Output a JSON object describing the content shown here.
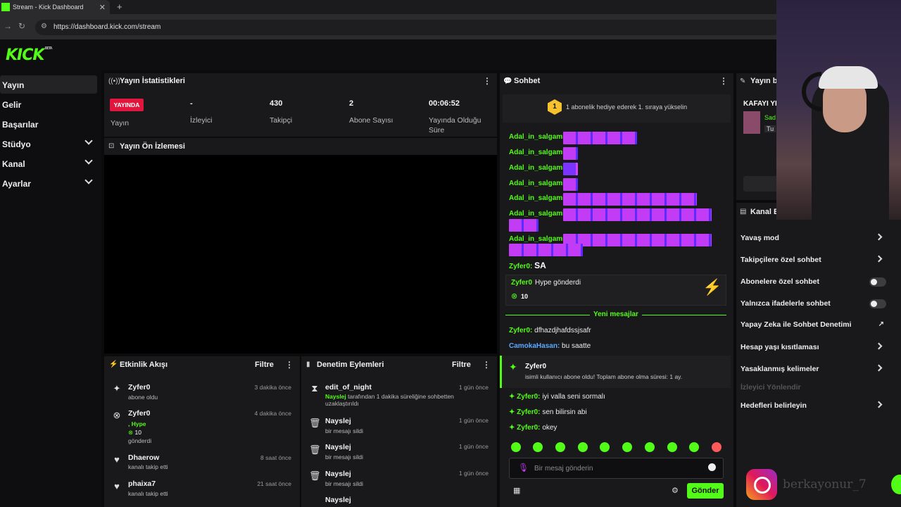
{
  "browser": {
    "tab_title": "Stream - Kick Dashboard",
    "url": "https://dashboard.kick.com/stream"
  },
  "logo": "KICK",
  "logo_beta": "BETA",
  "sidebar": {
    "items": [
      {
        "label": "Yayın"
      },
      {
        "label": "Gelir"
      },
      {
        "label": "Başarılar"
      },
      {
        "label": "Stüdyo"
      },
      {
        "label": "Kanal"
      },
      {
        "label": "Ayarlar"
      }
    ]
  },
  "stats": {
    "title": "Yayın İstatistikleri",
    "live_badge": "YAYINDA",
    "live_label": "Yayın",
    "viewers_value": "-",
    "viewers_label": "İzleyici",
    "followers_value": "430",
    "followers_label": "Takipçi",
    "subs_value": "2",
    "subs_label": "Abone Sayısı",
    "uptime_value": "00:06:52",
    "uptime_label": "Yayında Olduğu Süre"
  },
  "preview": {
    "title": "Yayın Ön İzlemesi"
  },
  "activity": {
    "title": "Etkinlik Akışı",
    "filter": "Filtre",
    "rows": [
      {
        "name": "Zyfer0",
        "sub": "abone oldu",
        "time": "3 dakika önce"
      },
      {
        "name": "Zyfer0",
        "sub": "Hype",
        "amount": "10",
        "sub2": "gönderdi",
        "time": "4 dakika önce"
      },
      {
        "name": "Dhaerow",
        "sub": "kanalı takip etti",
        "time": "8 saat önce"
      },
      {
        "name": "phaixa7",
        "sub": "kanalı takip etti",
        "time": "21 saat önce"
      }
    ]
  },
  "moderation": {
    "title": "Denetim Eylemleri",
    "filter": "Filtre",
    "rows": [
      {
        "name": "edit_of_night",
        "actor": "Nayslej",
        "sub": "tarafından 1 dakika süreliğine sohbetten uzaklaştırıldı",
        "time": "1 gün önce"
      },
      {
        "name": "Nayslej",
        "sub": "bir mesajı sildi",
        "time": "1 gün önce"
      },
      {
        "name": "Nayslej",
        "sub": "bir mesajı sildi",
        "time": "1 gün önce"
      },
      {
        "name": "Nayslej",
        "sub": "bir mesajı sildi",
        "time": "1 gün önce"
      },
      {
        "name": "Nayslej"
      }
    ]
  },
  "chat": {
    "title": "Sohbet",
    "banner_rank": "1",
    "banner_text": "1 abonelik hediye ederek 1. sıraya yükselin",
    "emote_user": "Adal_in_salgami:",
    "sa_user": "Zyfer0:",
    "sa_text": "SA",
    "hype_user": "Zyfer0",
    "hype_text": "Hype gönderdi",
    "hype_amount": "10",
    "new_messages": "Yeni mesajlar",
    "msgs": [
      {
        "user": "Zyfer0:",
        "text": "dfhazdjhafdssjsafr",
        "color": "#53fc18"
      },
      {
        "user": "CamokaHasan:",
        "text": "bu saatte",
        "color": "#5aa9ff"
      }
    ],
    "sub_user": "Zyfer0",
    "sub_text": "isimli kullanıcı abone oldu! Toplam abone olma süresi: 1 ay.",
    "msgs2": [
      {
        "user": "Zyfer0:",
        "text": "iyi valla seni sormalı"
      },
      {
        "user": "Zyfer0:",
        "text": "sen bilirsin abi"
      },
      {
        "user": "Zyfer0:",
        "text": "okey"
      }
    ],
    "input_placeholder": "Bir mesaj gönderin",
    "send": "Gönder"
  },
  "right_panel": {
    "title": "Yayın bi",
    "stream_title": "KAFAYI YI",
    "badge1": "Sad",
    "badge2": "Tu",
    "settings_title": "Kanal E",
    "rows": [
      {
        "label": "Yavaş mod",
        "control": "chevron"
      },
      {
        "label": "Takipçilere özel sohbet",
        "control": "chevron"
      },
      {
        "label": "Abonelere özel sohbet",
        "control": "toggle"
      },
      {
        "label": "Yalnızca ifadelerle sohbet",
        "control": "toggle"
      },
      {
        "label": "Yapay Zeka ile Sohbet Denetimi",
        "control": "external"
      },
      {
        "label": "Hesap yaşı kısıtlaması",
        "control": "chevron"
      },
      {
        "label": "Yasaklanmış kelimeler",
        "control": "chevron"
      },
      {
        "label": "İzleyici Yönlendir",
        "control": "none",
        "disabled": true
      },
      {
        "label": "Hedefleri belirleyin",
        "control": "chevron"
      }
    ]
  },
  "overlay": {
    "watermark": "berkayonur_7"
  },
  "colors": {
    "accent": "#53fc18",
    "live": "#e0163e",
    "panel": "#19191b",
    "background": "#0b0b0c"
  }
}
